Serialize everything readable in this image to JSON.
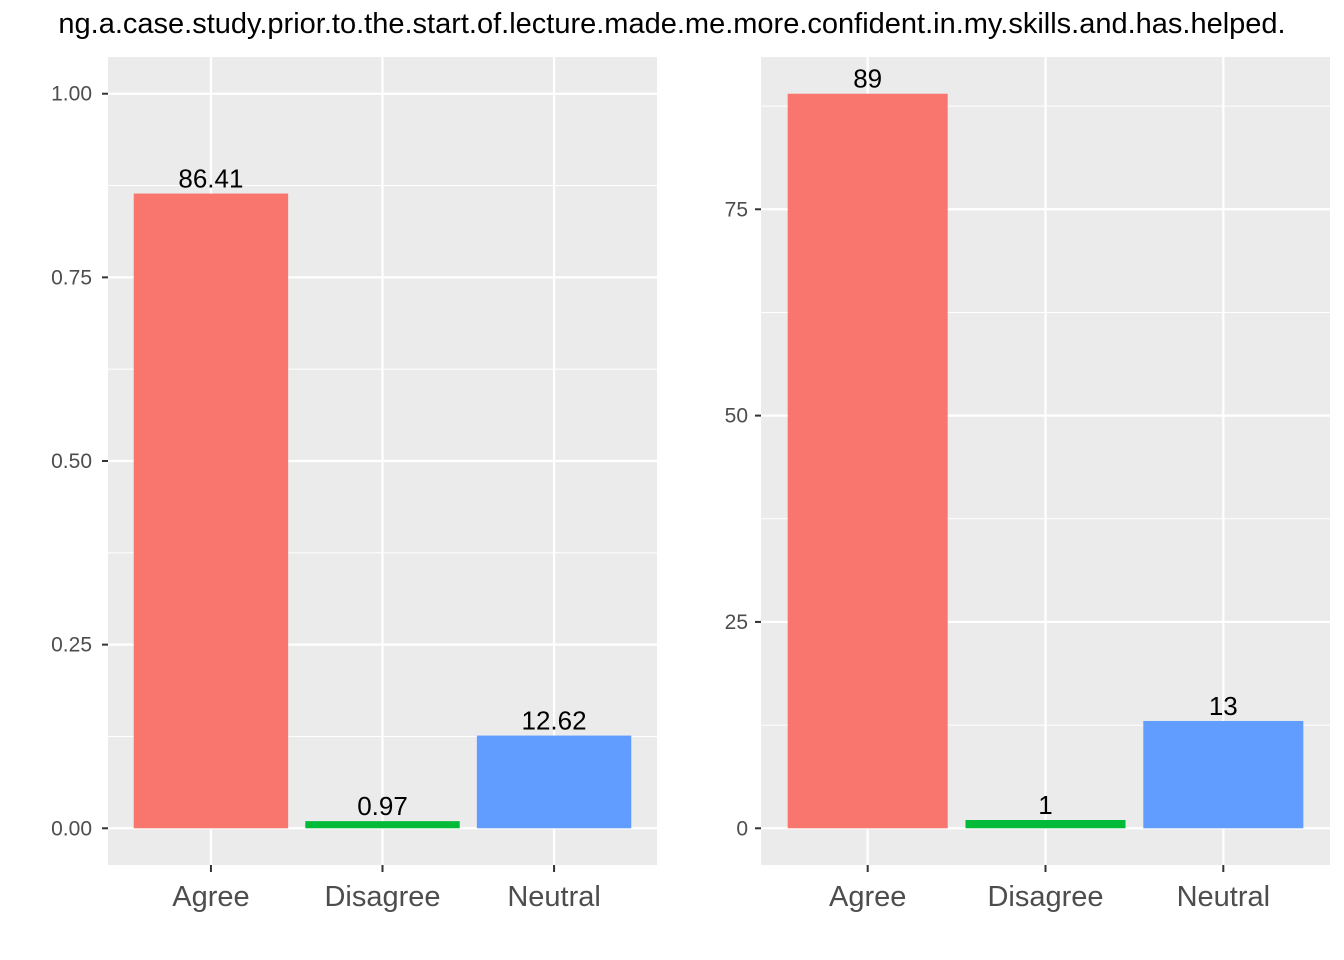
{
  "title": "ng.a.case.study.prior.to.the.start.of.lecture.made.me.more.confident.in.my.skills.and.has.helped.",
  "colors": {
    "Agree": "#F8766D",
    "Disagree": "#00BA38",
    "Neutral": "#619CFF",
    "panel_bg": "#EBEBEB",
    "grid": "#FFFFFF",
    "tick_text": "#4D4D4D"
  },
  "chart_data": [
    {
      "type": "bar",
      "categories": [
        "Agree",
        "Disagree",
        "Neutral"
      ],
      "values": [
        0.8641,
        0.0097,
        0.1262
      ],
      "labels": [
        "86.41",
        "0.97",
        "12.62"
      ],
      "ylim": [
        -0.05,
        1.05
      ],
      "yticks": [
        0,
        0.25,
        0.5,
        0.75,
        1.0
      ],
      "ytick_labels": [
        "0.00",
        "0.25",
        "0.50",
        "0.75",
        "1.00"
      ],
      "grid": true
    },
    {
      "type": "bar",
      "categories": [
        "Agree",
        "Disagree",
        "Neutral"
      ],
      "values": [
        89,
        1,
        13
      ],
      "labels": [
        "89",
        "1",
        "13"
      ],
      "ylim": [
        -4.45,
        93.45
      ],
      "yticks": [
        0,
        25,
        50,
        75
      ],
      "ytick_labels": [
        "0",
        "25",
        "50",
        "75"
      ],
      "grid": true
    }
  ]
}
